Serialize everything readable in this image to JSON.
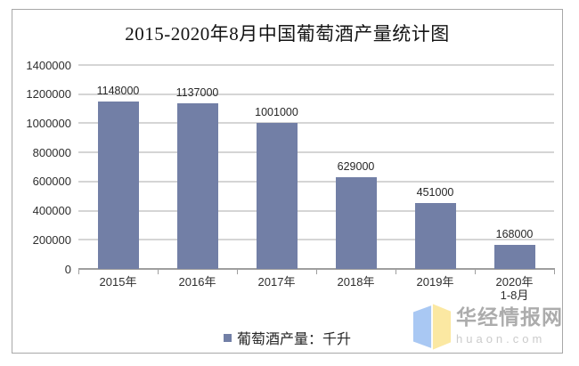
{
  "page": {
    "background": "#FFFFFF"
  },
  "chart_data": {
    "type": "bar",
    "title": "2015-2020年8月中国葡萄酒产量统计图",
    "categories": [
      "2015年",
      "2016年",
      "2017年",
      "2018年",
      "2019年",
      "2020年\n1-8月"
    ],
    "values": [
      1148000,
      1137000,
      1001000,
      629000,
      451000,
      168000
    ],
    "value_labels": [
      "1148000",
      "1137000",
      "1001000",
      "629000",
      "451000",
      "168000"
    ],
    "legend": {
      "label": "葡萄酒产量：千升",
      "position": "bottom-center",
      "marker_color": "#727FA6"
    },
    "xlabel": "",
    "ylabel": "",
    "ylim": [
      0,
      1400000
    ],
    "ytick_step": 200000,
    "yticks": [
      "1400000",
      "1200000",
      "1000000",
      "800000",
      "600000",
      "400000",
      "200000",
      "0"
    ],
    "grid": "horizontal",
    "bar_color": "#727FA6",
    "gridline_color": "#D5D5D5",
    "axis_line_color": "#9E9E9E"
  },
  "watermark": {
    "site_name": "华经情报网",
    "site_domain": "huaon.com",
    "logo": {
      "left_color": "#A9C8F3",
      "right_color": "#FBE8A2"
    }
  }
}
